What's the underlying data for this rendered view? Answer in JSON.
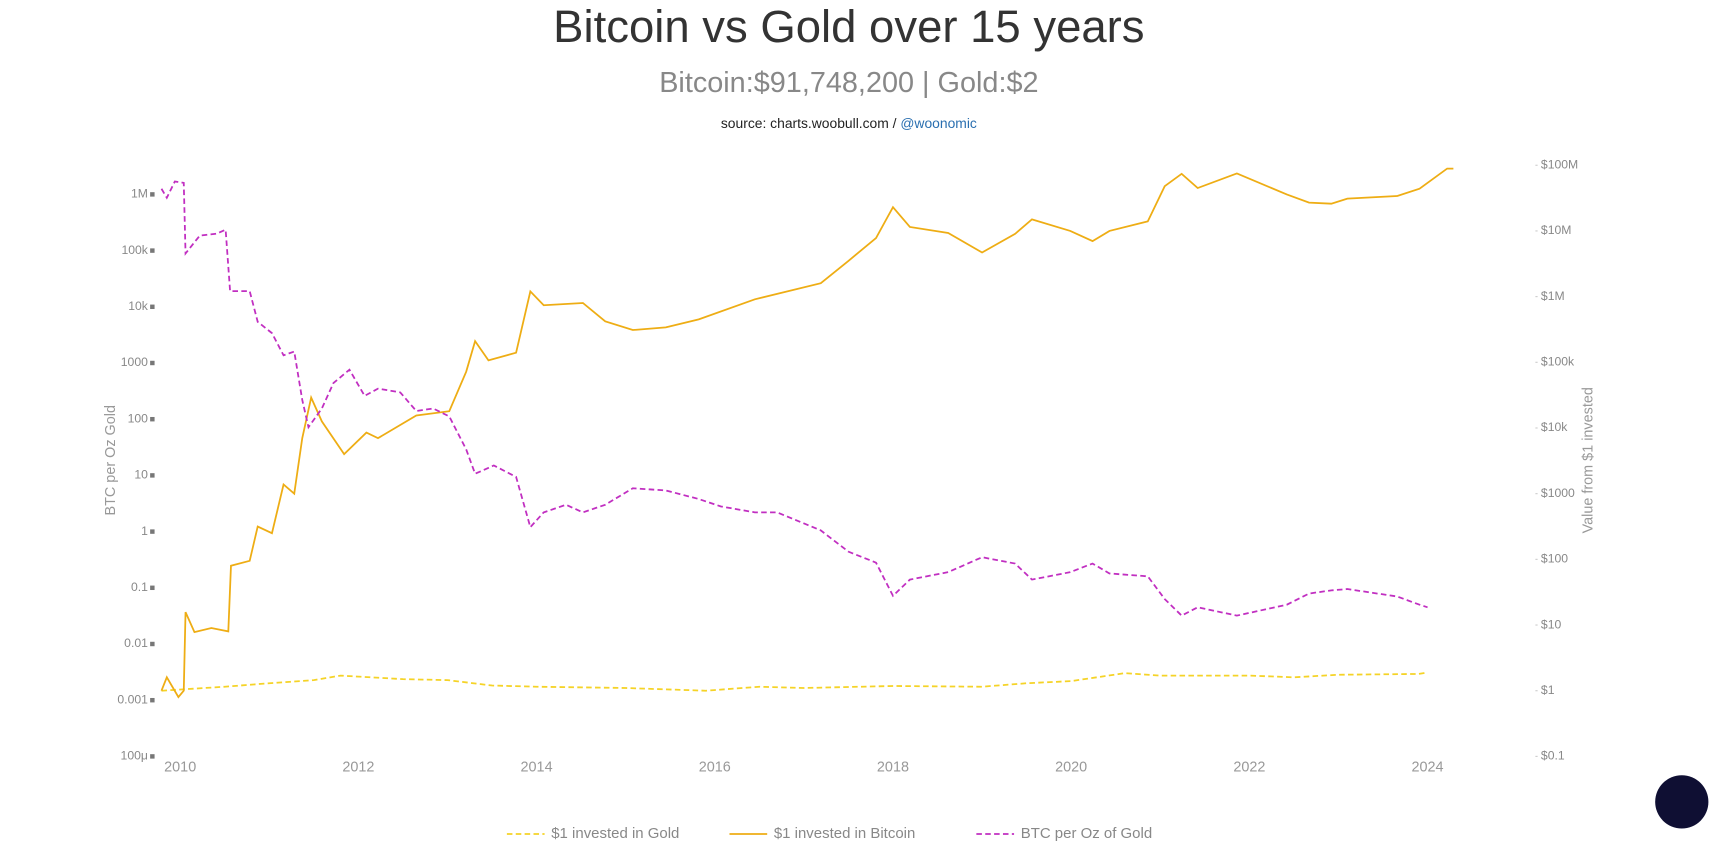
{
  "chart_data": {
    "type": "line",
    "title": "Bitcoin vs Gold over 15 years",
    "subtitle": "Bitcoin:$91,748,200 | Gold:$2",
    "source": "source: charts.woobull.com / ",
    "source_link": "@woonomic",
    "ylabel": "BTC per Oz Gold",
    "y2label": "Value from $1 invested",
    "xlim": [
      2009.7,
      2024.7
    ],
    "xticks": [
      2010,
      2012,
      2014,
      2016,
      2018,
      2020,
      2022,
      2024
    ],
    "ylim": [
      0.0001,
      3300000
    ],
    "ylog": true,
    "yticks": [
      {
        "value": 0.0001,
        "label": "100μ"
      },
      0.001,
      0.01,
      0.1,
      1,
      10,
      100,
      1000,
      {
        "value": 10000,
        "label": "10k"
      },
      {
        "value": 100000,
        "label": "100k"
      },
      {
        "value": 1000000,
        "label": "1M"
      }
    ],
    "y2lim": [
      0.1,
      100000000
    ],
    "y2log": true,
    "y2ticks": [
      {
        "value": 0.1,
        "label": "$0.1"
      },
      {
        "value": 1,
        "label": "$1"
      },
      {
        "value": 10,
        "label": "$10"
      },
      {
        "value": 100,
        "label": "$100"
      },
      {
        "value": 1000,
        "label": "$1000"
      },
      {
        "value": 10000,
        "label": "$10k"
      },
      {
        "value": 100000,
        "label": "$100k"
      },
      {
        "value": 1000000,
        "label": "$1M"
      },
      {
        "value": 10000000,
        "label": "$10M"
      },
      {
        "value": 100000000,
        "label": "$100M"
      }
    ],
    "grid": false,
    "legend": "bottom",
    "series": [
      {
        "name": "$1 invested in Gold",
        "color": "#f5d327",
        "line_style": "dashed",
        "axis": "y2",
        "x": [
          2009.79,
          2010.5,
          2011.0,
          2011.5,
          2011.8,
          2012.5,
          2013.0,
          2013.5,
          2014.0,
          2015.0,
          2015.9,
          2016.5,
          2017.0,
          2018.0,
          2019.0,
          2019.5,
          2020.0,
          2020.6,
          2021.0,
          2022.0,
          2022.5,
          2023.0,
          2023.9,
          2024.0
        ],
        "values": [
          1.0,
          1.15,
          1.3,
          1.45,
          1.7,
          1.5,
          1.45,
          1.2,
          1.15,
          1.1,
          1.0,
          1.15,
          1.1,
          1.18,
          1.15,
          1.3,
          1.4,
          1.85,
          1.7,
          1.7,
          1.6,
          1.75,
          1.8,
          1.9
        ]
      },
      {
        "name": "$1 invested in Bitcoin",
        "color": "#eead14",
        "line_style": "solid",
        "axis": "y2",
        "x": [
          2009.79,
          2009.85,
          2009.98,
          2010.04,
          2010.06,
          2010.16,
          2010.35,
          2010.54,
          2010.57,
          2010.78,
          2010.87,
          2011.03,
          2011.16,
          2011.28,
          2011.37,
          2011.47,
          2011.59,
          2011.84,
          2012.09,
          2012.22,
          2012.65,
          2013.02,
          2013.21,
          2013.31,
          2013.46,
          2013.77,
          2013.93,
          2014.08,
          2014.52,
          2014.77,
          2015.08,
          2015.45,
          2015.82,
          2016.45,
          2017.19,
          2017.5,
          2017.81,
          2018.0,
          2018.19,
          2018.62,
          2019.0,
          2019.37,
          2019.56,
          2019.99,
          2020.24,
          2020.43,
          2020.86,
          2021.05,
          2021.24,
          2021.42,
          2021.86,
          2022.42,
          2022.67,
          2022.92,
          2023.1,
          2023.66,
          2023.91,
          2024.22,
          2024.29
        ],
        "values": [
          1,
          1.6,
          0.8,
          1,
          15.7,
          7.8,
          9,
          8,
          80,
          95,
          316,
          250,
          1380,
          1000,
          7000,
          29000,
          12600,
          4000,
          8500,
          7000,
          15500,
          18000,
          72000,
          210000,
          107000,
          140000,
          1200000,
          740000,
          800000,
          420000,
          310000,
          340000,
          450000,
          910000,
          1600000,
          3500000,
          7800000,
          23000000,
          11500000,
          9300000,
          4700000,
          9000000,
          15000000,
          10000000,
          7000000,
          10000000,
          14000000,
          48000000,
          74000000,
          45000000,
          75000000,
          36000000,
          27000000,
          26000000,
          31000000,
          34000000,
          44000000,
          89000000,
          89000000
        ]
      },
      {
        "name": "BTC per Oz of Gold",
        "color": "#c12fc1",
        "line_style": "dashed",
        "x": [
          2009.79,
          2009.85,
          2009.94,
          2010.04,
          2010.06,
          2010.22,
          2010.41,
          2010.51,
          2010.56,
          2010.78,
          2010.87,
          2011.03,
          2011.16,
          2011.28,
          2011.37,
          2011.44,
          2011.59,
          2011.72,
          2011.9,
          2012.07,
          2012.22,
          2012.47,
          2012.65,
          2012.84,
          2013.02,
          2013.21,
          2013.31,
          2013.52,
          2013.77,
          2013.93,
          2014.08,
          2014.33,
          2014.52,
          2014.77,
          2015.08,
          2015.45,
          2015.82,
          2016.07,
          2016.45,
          2016.7,
          2017.19,
          2017.5,
          2017.81,
          2018.0,
          2018.19,
          2018.62,
          2019.0,
          2019.37,
          2019.56,
          2019.99,
          2020.24,
          2020.43,
          2020.86,
          2021.05,
          2021.24,
          2021.42,
          2021.86,
          2022.42,
          2022.67,
          2022.92,
          2023.1,
          2023.66,
          2023.91,
          2024.0
        ],
        "values": [
          1260000,
          870000,
          1700000,
          1600000,
          89000,
          185000,
          200000,
          235000,
          19000,
          19000,
          5400,
          3400,
          1370,
          1600,
          220,
          72,
          155,
          440,
          760,
          260,
          350,
          300,
          140,
          155,
          112,
          29,
          10.7,
          15,
          9.4,
          1.2,
          2.2,
          3,
          2.2,
          3,
          5.9,
          5.4,
          3.8,
          2.8,
          2.2,
          2.2,
          1.05,
          0.44,
          0.28,
          0.072,
          0.14,
          0.19,
          0.35,
          0.27,
          0.14,
          0.19,
          0.27,
          0.18,
          0.16,
          0.063,
          0.032,
          0.045,
          0.032,
          0.05,
          0.079,
          0.09,
          0.095,
          0.07,
          0.05,
          0.045
        ]
      }
    ]
  }
}
